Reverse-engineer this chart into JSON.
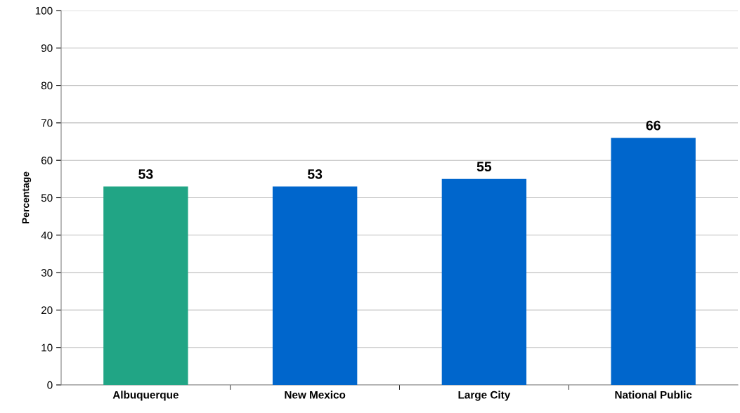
{
  "chart_data": {
    "type": "bar",
    "ylabel": "Percentage",
    "categories": [
      "Albuquerque",
      "New Mexico",
      "Large City",
      "National Public"
    ],
    "values": [
      53,
      53,
      55,
      66
    ],
    "colors": [
      "#21a585",
      "#0066cc",
      "#0066cc",
      "#0066cc"
    ],
    "ylim": [
      0,
      100
    ],
    "yticks": [
      0,
      10,
      20,
      30,
      40,
      50,
      60,
      70,
      80,
      90,
      100
    ],
    "grid": "y",
    "data_labels": true,
    "legend": false
  }
}
